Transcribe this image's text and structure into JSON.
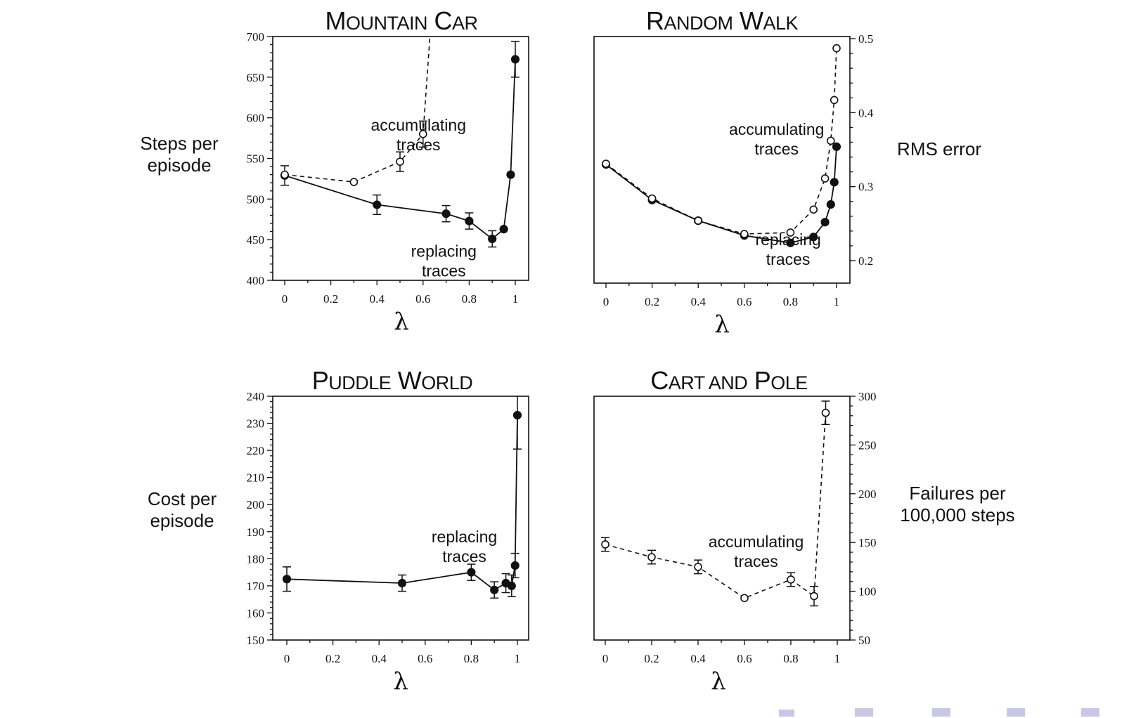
{
  "chart_data": [
    {
      "id": "mountain-car",
      "type": "line",
      "title_parts": [
        [
          "M",
          "big"
        ],
        [
          "OUNTAIN",
          "sc"
        ],
        [
          " C",
          "big"
        ],
        [
          "AR",
          "sc"
        ]
      ],
      "ylabel_lines": [
        "Steps per",
        "episode"
      ],
      "xlabel": "λ",
      "xlim": [
        0,
        1
      ],
      "ylim": [
        400,
        700
      ],
      "xticks": [
        0,
        0.2,
        0.4,
        0.6,
        0.8,
        1
      ],
      "xtick_labels": [
        "0",
        "0.2",
        "0.4",
        "0.6",
        "0.8",
        "1"
      ],
      "yticks": [
        400,
        450,
        500,
        550,
        600,
        650,
        700
      ],
      "ytick_labels": [
        "400",
        "450",
        "500",
        "550",
        "600",
        "650",
        "700"
      ],
      "yaxis_side": "left",
      "series": [
        {
          "style": "filled-solid",
          "x": [
            0,
            0.4,
            0.7,
            0.8,
            0.9,
            0.95,
            0.98,
            1
          ],
          "y": [
            529,
            493,
            482,
            473,
            451,
            463,
            530,
            672
          ],
          "err": [
            12,
            12,
            10,
            10,
            10,
            0,
            0,
            22
          ],
          "extend_to_y": null
        },
        {
          "style": "open-dashed",
          "x": [
            0,
            0.3,
            0.5,
            0.6
          ],
          "y": [
            530,
            521,
            546,
            580
          ],
          "err": [
            0,
            0,
            12,
            16
          ],
          "extend_to_y": 700,
          "extend_to_x": 0.63
        }
      ],
      "annotations": [
        {
          "lines": [
            "accumulating",
            "traces"
          ],
          "x": 0.58,
          "y": 584
        },
        {
          "lines": [
            "replacing",
            "traces"
          ],
          "x": 0.69,
          "y": 429
        }
      ]
    },
    {
      "id": "random-walk",
      "type": "line",
      "title_parts": [
        [
          "R",
          "big"
        ],
        [
          "ANDOM",
          "sc"
        ],
        [
          " W",
          "big"
        ],
        [
          "ALK",
          "sc"
        ]
      ],
      "ylabel_lines": [
        "RMS error"
      ],
      "xlabel": "λ",
      "xlim": [
        0,
        1
      ],
      "ylim": [
        0.17,
        0.5
      ],
      "xticks": [
        0,
        0.2,
        0.4,
        0.6,
        0.8,
        1
      ],
      "xtick_labels": [
        "0",
        "0.2",
        "0.4",
        "0.6",
        "0.8",
        "1"
      ],
      "yticks": [
        0.2,
        0.3,
        0.4,
        0.5
      ],
      "ytick_labels": [
        "0.2",
        "0.3",
        "0.4",
        "0.5"
      ],
      "yaxis_side": "right",
      "series": [
        {
          "style": "filled-solid",
          "x": [
            0,
            0.2,
            0.4,
            0.6,
            0.8,
            0.9,
            0.95,
            0.975,
            0.99,
            1
          ],
          "y": [
            0.33,
            0.282,
            0.254,
            0.234,
            0.224,
            0.232,
            0.252,
            0.276,
            0.306,
            0.354
          ],
          "err": [
            0,
            0,
            0,
            0,
            0,
            0,
            0,
            0,
            0,
            0
          ],
          "extend_to_y": null
        },
        {
          "style": "open-dashed",
          "x": [
            0,
            0.2,
            0.4,
            0.6,
            0.8,
            0.9,
            0.95,
            0.975,
            0.99,
            1
          ],
          "y": [
            0.331,
            0.284,
            0.254,
            0.236,
            0.238,
            0.269,
            0.311,
            0.362,
            0.417,
            0.487
          ],
          "err": [
            0,
            0,
            0,
            0,
            0,
            0,
            0,
            0,
            0,
            0
          ],
          "extend_to_y": null
        }
      ],
      "annotations": [
        {
          "lines": [
            "accumulating",
            "traces"
          ],
          "x": 0.74,
          "y": 0.37
        },
        {
          "lines": [
            "replacing",
            "traces"
          ],
          "x": 0.79,
          "y": 0.221
        }
      ]
    },
    {
      "id": "puddle-world",
      "type": "line",
      "title_parts": [
        [
          "P",
          "big"
        ],
        [
          "UDDLE",
          "sc"
        ],
        [
          " W",
          "big"
        ],
        [
          "ORLD",
          "sc"
        ]
      ],
      "ylabel_lines": [
        "Cost per",
        "episode"
      ],
      "xlabel": "λ",
      "xlim": [
        0,
        1
      ],
      "ylim": [
        150,
        240
      ],
      "xticks": [
        0,
        0.2,
        0.4,
        0.6,
        0.8,
        1
      ],
      "xtick_labels": [
        "0",
        "0.2",
        "0.4",
        "0.6",
        "0.8",
        "1"
      ],
      "yticks": [
        150,
        160,
        170,
        180,
        190,
        200,
        210,
        220,
        230,
        240
      ],
      "ytick_labels": [
        "150",
        "160",
        "170",
        "180",
        "190",
        "200",
        "210",
        "220",
        "230",
        "240"
      ],
      "yaxis_side": "left",
      "series": [
        {
          "style": "filled-solid",
          "x": [
            0,
            0.5,
            0.8,
            0.9,
            0.95,
            0.975,
            0.99,
            1
          ],
          "y": [
            172.5,
            171,
            175,
            168.5,
            171,
            170,
            177.5,
            233
          ],
          "err": [
            4.5,
            3,
            3,
            3,
            3.5,
            4,
            4.5,
            12.5
          ],
          "extend_to_y": null
        }
      ],
      "annotations": [
        {
          "lines": [
            "replacing",
            "traces"
          ],
          "x": 0.77,
          "y": 186
        }
      ]
    },
    {
      "id": "cart-and-pole",
      "type": "line",
      "title_parts": [
        [
          "C",
          "big"
        ],
        [
          "ART AND",
          "sc"
        ],
        [
          " P",
          "big"
        ],
        [
          "OLE",
          "sc"
        ]
      ],
      "ylabel_lines": [
        "Failures per",
        "100,000 steps"
      ],
      "xlabel": "λ",
      "xlim": [
        0,
        1
      ],
      "ylim": [
        50,
        300
      ],
      "xticks": [
        0,
        0.2,
        0.4,
        0.6,
        0.8,
        1
      ],
      "xtick_labels": [
        "0",
        "0.2",
        "0.4",
        "0.6",
        "0.8",
        "1"
      ],
      "yticks": [
        50,
        100,
        150,
        200,
        250,
        300
      ],
      "ytick_labels": [
        "50",
        "100",
        "150",
        "200",
        "250",
        "300"
      ],
      "yaxis_side": "right",
      "series": [
        {
          "style": "open-dashed",
          "x": [
            0,
            0.2,
            0.4,
            0.6,
            0.8,
            0.9,
            0.95
          ],
          "y": [
            148,
            135,
            125,
            93,
            112,
            95,
            283
          ],
          "err": [
            7,
            7,
            7,
            0,
            7,
            10,
            12
          ],
          "extend_to_y": null
        }
      ],
      "annotations": [
        {
          "lines": [
            "accumulating",
            "traces"
          ],
          "x": 0.65,
          "y": 145
        }
      ]
    }
  ]
}
